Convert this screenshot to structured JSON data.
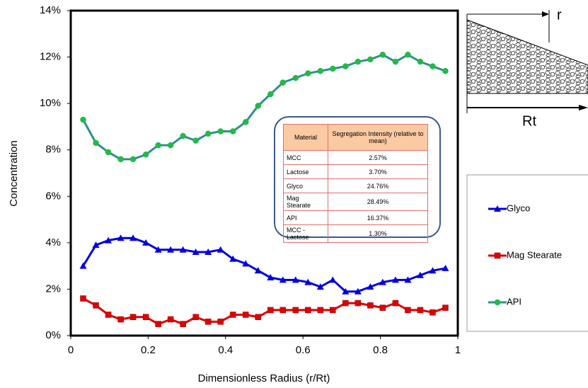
{
  "chart_data": {
    "type": "line",
    "ylabel": "Concentration",
    "xlabel": "Dimensionless Radius (r/Rt)",
    "x": [
      0.032,
      0.065,
      0.097,
      0.129,
      0.161,
      0.194,
      0.226,
      0.258,
      0.29,
      0.323,
      0.355,
      0.387,
      0.419,
      0.452,
      0.484,
      0.516,
      0.548,
      0.581,
      0.613,
      0.645,
      0.677,
      0.71,
      0.742,
      0.774,
      0.806,
      0.839,
      0.871,
      0.903,
      0.935,
      0.968
    ],
    "series": [
      {
        "name": "Glyco",
        "color": "#0000e0",
        "marker": "triangle",
        "values": [
          3.0,
          3.9,
          4.1,
          4.2,
          4.2,
          4.0,
          3.7,
          3.7,
          3.7,
          3.6,
          3.6,
          3.7,
          3.3,
          3.1,
          2.8,
          2.5,
          2.4,
          2.4,
          2.3,
          2.1,
          2.4,
          1.9,
          1.9,
          2.1,
          2.3,
          2.4,
          2.4,
          2.6,
          2.8,
          2.9
        ]
      },
      {
        "name": "Mag Stearate",
        "color": "#e00000",
        "marker": "square",
        "values": [
          1.6,
          1.3,
          0.9,
          0.7,
          0.8,
          0.8,
          0.5,
          0.7,
          0.5,
          0.8,
          0.6,
          0.6,
          0.9,
          0.9,
          0.8,
          1.1,
          1.1,
          1.1,
          1.1,
          1.1,
          1.1,
          1.4,
          1.4,
          1.3,
          1.2,
          1.4,
          1.1,
          1.1,
          1.0,
          1.2
        ]
      },
      {
        "name": "API",
        "color": "#2f8f8f",
        "marker": "circle",
        "marker_color": "#22bb44",
        "values": [
          9.3,
          8.3,
          7.9,
          7.6,
          7.6,
          7.8,
          8.2,
          8.2,
          8.6,
          8.4,
          8.7,
          8.8,
          8.8,
          9.2,
          9.9,
          10.4,
          10.9,
          11.1,
          11.3,
          11.4,
          11.5,
          11.6,
          11.8,
          11.9,
          12.1,
          11.8,
          12.1,
          11.8,
          11.6,
          11.4
        ]
      }
    ],
    "xlim": [
      0,
      1
    ],
    "xticks": [
      0,
      0.2,
      0.4,
      0.6,
      0.8,
      1
    ],
    "ylim": [
      0,
      14
    ],
    "yticks": [
      {
        "value": 0,
        "label": "0%"
      },
      {
        "value": 2,
        "label": "2%"
      },
      {
        "value": 4,
        "label": "4%"
      },
      {
        "value": 6,
        "label": "6%"
      },
      {
        "value": 8,
        "label": "8%"
      },
      {
        "value": 10,
        "label": "10%"
      },
      {
        "value": 12,
        "label": "12%"
      },
      {
        "value": 14,
        "label": "14%"
      }
    ],
    "grid": false,
    "legend": "right",
    "inset_table": {
      "headers": [
        "Material",
        "Segregation Intensity (relative to mean)"
      ],
      "rows": [
        [
          "MCC",
          "2.57%"
        ],
        [
          "Lactose",
          "3.70%"
        ],
        [
          "Glyco",
          "24.76%"
        ],
        [
          "Mag Stearate",
          "28.49%"
        ],
        [
          "API",
          "16.37%"
        ],
        [
          "MCC - Lactose",
          "1.30%"
        ]
      ]
    },
    "diagram_labels": [
      "r",
      "Rt"
    ]
  }
}
